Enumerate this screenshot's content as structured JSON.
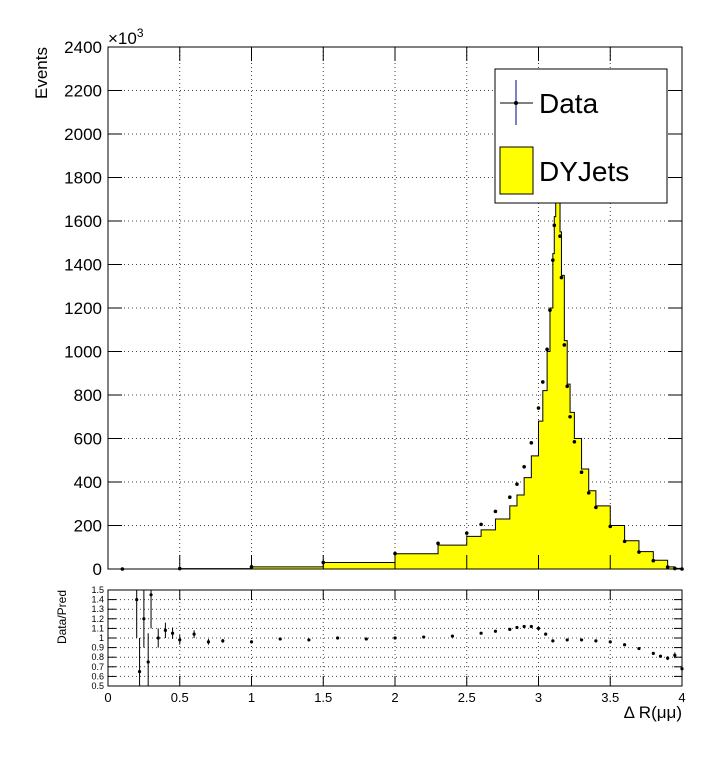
{
  "chart_data": [
    {
      "type": "histogram",
      "xlim": [
        0,
        4
      ],
      "ylim": [
        0,
        2400000
      ],
      "ylabel": "Events",
      "y_exponent_label": "×10",
      "y_exponent_power": "3",
      "y_ticks": [
        0,
        200000,
        400000,
        600000,
        800000,
        1000000,
        1200000,
        1400000,
        1600000,
        1800000,
        2000000,
        2200000,
        2400000
      ],
      "y_tick_labels": [
        "0",
        "200",
        "400",
        "600",
        "800",
        "1000",
        "1200",
        "1400",
        "1600",
        "1800",
        "2000",
        "2200",
        "2400"
      ],
      "grid": true,
      "legend": {
        "placement": "top-right",
        "entries": [
          {
            "label": "Data",
            "style": "marker-with-errorbar",
            "color": "#000000"
          },
          {
            "label": "DYJets",
            "style": "filled-box",
            "color": "#ffff00"
          }
        ]
      },
      "series": [
        {
          "name": "DYJets",
          "kind": "filled-step",
          "fill_color": "#ffff00",
          "x": [
            0.1,
            0.5,
            1.0,
            1.5,
            2.0,
            2.3,
            2.5,
            2.6,
            2.7,
            2.8,
            2.85,
            2.9,
            2.95,
            3.0,
            3.03,
            3.06,
            3.08,
            3.1,
            3.11,
            3.12,
            3.13,
            3.14,
            3.15,
            3.16,
            3.18,
            3.2,
            3.22,
            3.25,
            3.3,
            3.35,
            3.4,
            3.5,
            3.6,
            3.7,
            3.8,
            3.9,
            3.95,
            4.0
          ],
          "values": [
            0,
            2000,
            10000,
            30000,
            70000,
            110000,
            150000,
            180000,
            230000,
            290000,
            340000,
            420000,
            520000,
            680000,
            820000,
            1000000,
            1200000,
            1450000,
            1620000,
            1720000,
            1740000,
            1700000,
            1550000,
            1350000,
            1050000,
            850000,
            720000,
            600000,
            460000,
            360000,
            290000,
            200000,
            130000,
            80000,
            40000,
            10000,
            3000,
            0
          ]
        },
        {
          "name": "Data",
          "kind": "points",
          "marker_color": "#000000",
          "x": [
            0.1,
            0.5,
            1.0,
            1.5,
            2.0,
            2.3,
            2.5,
            2.6,
            2.7,
            2.8,
            2.85,
            2.9,
            2.95,
            3.0,
            3.03,
            3.06,
            3.08,
            3.1,
            3.11,
            3.12,
            3.13,
            3.14,
            3.15,
            3.16,
            3.18,
            3.2,
            3.22,
            3.25,
            3.3,
            3.35,
            3.4,
            3.5,
            3.6,
            3.7,
            3.8,
            3.9,
            3.95,
            4.0
          ],
          "values": [
            0,
            2000,
            10000,
            30000,
            71000,
            118000,
            165000,
            205000,
            265000,
            330000,
            390000,
            470000,
            580000,
            740000,
            860000,
            1010000,
            1190000,
            1420000,
            1580000,
            1690000,
            1730000,
            1690000,
            1530000,
            1340000,
            1030000,
            840000,
            700000,
            585000,
            445000,
            350000,
            283000,
            196000,
            127000,
            78000,
            38000,
            9000,
            2500,
            0
          ]
        }
      ]
    },
    {
      "type": "scatter",
      "xlim": [
        0,
        4
      ],
      "ylim": [
        0.5,
        1.5
      ],
      "xlabel": "Δ R(μμ)",
      "ylabel": "Data/Pred",
      "x_ticks": [
        0,
        0.5,
        1,
        1.5,
        2,
        2.5,
        3,
        3.5,
        4
      ],
      "x_tick_labels": [
        "0",
        "0.5",
        "1",
        "1.5",
        "2",
        "2.5",
        "3",
        "3.5",
        "4"
      ],
      "y_ticks": [
        0.5,
        0.6,
        0.7,
        0.8,
        0.9,
        1.0,
        1.1,
        1.2,
        1.3,
        1.4,
        1.5
      ],
      "y_tick_labels": [
        "0.5",
        "0.6",
        "0.7",
        "0.8",
        "0.9",
        "1",
        "1.1",
        "1.2",
        "1.3",
        "1.4",
        "1.5"
      ],
      "grid": true,
      "series": [
        {
          "name": "Data/Pred",
          "kind": "points-with-errorbars",
          "marker_color": "#000000",
          "x": [
            0.2,
            0.22,
            0.25,
            0.28,
            0.3,
            0.35,
            0.4,
            0.45,
            0.5,
            0.6,
            0.7,
            0.8,
            1.0,
            1.2,
            1.4,
            1.6,
            1.8,
            2.0,
            2.2,
            2.4,
            2.6,
            2.7,
            2.8,
            2.85,
            2.9,
            2.95,
            3.0,
            3.05,
            3.1,
            3.2,
            3.3,
            3.4,
            3.5,
            3.6,
            3.7,
            3.8,
            3.85,
            3.9,
            3.95,
            4.0
          ],
          "values": [
            1.4,
            0.65,
            1.2,
            0.75,
            1.45,
            1.0,
            1.08,
            1.05,
            0.98,
            1.04,
            0.96,
            0.97,
            0.96,
            0.99,
            0.98,
            1.0,
            0.99,
            1.0,
            1.01,
            1.02,
            1.05,
            1.07,
            1.09,
            1.11,
            1.12,
            1.12,
            1.1,
            1.04,
            0.97,
            0.98,
            0.98,
            0.97,
            0.96,
            0.93,
            0.89,
            0.84,
            0.81,
            0.79,
            0.82,
            0.68
          ],
          "errors": [
            0.4,
            0.35,
            0.3,
            0.3,
            0.35,
            0.1,
            0.08,
            0.06,
            0.05,
            0.04,
            0.03,
            0.02,
            0.015,
            0.01,
            0.01,
            0.008,
            0.007,
            0.006,
            0.005,
            0.004,
            0.004,
            0.004,
            0.004,
            0.003,
            0.003,
            0.003,
            0.003,
            0.003,
            0.003,
            0.003,
            0.003,
            0.004,
            0.004,
            0.005,
            0.006,
            0.01,
            0.015,
            0.02,
            0.03,
            0.05
          ]
        }
      ]
    }
  ]
}
